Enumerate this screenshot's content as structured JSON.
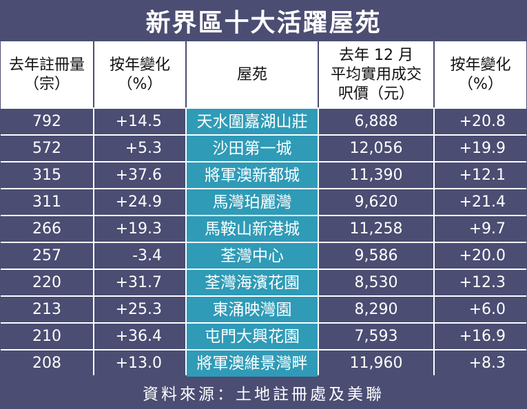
{
  "title": "新界區十大活躍屋苑",
  "headers": {
    "registrations": [
      "去年註冊量",
      "（宗）"
    ],
    "registrations_change": [
      "按年變化",
      "（%）"
    ],
    "estate": [
      "屋苑"
    ],
    "price": [
      "去年 12 月",
      "平均實用成交",
      "呎價（元）"
    ],
    "price_change": [
      "按年變化",
      "（%）"
    ]
  },
  "rows": [
    {
      "registrations": "792",
      "registrations_change": "+14.5",
      "estate": "天水圍嘉湖山莊",
      "price": "6,888",
      "price_change": "+20.8"
    },
    {
      "registrations": "572",
      "registrations_change": "+5.3",
      "estate": "沙田第一城",
      "price": "12,056",
      "price_change": "+19.9"
    },
    {
      "registrations": "315",
      "registrations_change": "+37.6",
      "estate": "將軍澳新都城",
      "price": "11,390",
      "price_change": "+12.1"
    },
    {
      "registrations": "311",
      "registrations_change": "+24.9",
      "estate": "馬灣珀麗灣",
      "price": "9,620",
      "price_change": "+21.4"
    },
    {
      "registrations": "266",
      "registrations_change": "+19.3",
      "estate": "馬鞍山新港城",
      "price": "11,258",
      "price_change": "+9.7"
    },
    {
      "registrations": "257",
      "registrations_change": "-3.4",
      "estate": "荃灣中心",
      "price": "9,586",
      "price_change": "+20.0"
    },
    {
      "registrations": "220",
      "registrations_change": "+31.7",
      "estate": "荃灣海濱花園",
      "price": "8,530",
      "price_change": "+12.3"
    },
    {
      "registrations": "213",
      "registrations_change": "+25.3",
      "estate": "東涌映灣園",
      "price": "8,290",
      "price_change": "+6.0"
    },
    {
      "registrations": "210",
      "registrations_change": "+36.4",
      "estate": "屯門大興花園",
      "price": "7,593",
      "price_change": "+16.9"
    },
    {
      "registrations": "208",
      "registrations_change": "+13.0",
      "estate": "將軍澳維景灣畔",
      "price": "11,960",
      "price_change": "+8.3"
    }
  ],
  "source": "資料來源：土地註冊處及美聯",
  "colors": {
    "row_background": "#4b4d72",
    "estate_highlight": "#2f9bb7",
    "header_background": "#ffffff"
  },
  "chart_data": {
    "type": "table",
    "title": "新界區十大活躍屋苑",
    "columns": [
      "去年註冊量（宗）",
      "按年變化（%）",
      "屋苑",
      "去年 12 月平均實用成交呎價（元）",
      "按年變化（%）"
    ],
    "rows": [
      [
        792,
        14.5,
        "天水圍嘉湖山莊",
        6888,
        20.8
      ],
      [
        572,
        5.3,
        "沙田第一城",
        12056,
        19.9
      ],
      [
        315,
        37.6,
        "將軍澳新都城",
        11390,
        12.1
      ],
      [
        311,
        24.9,
        "馬灣珀麗灣",
        9620,
        21.4
      ],
      [
        266,
        19.3,
        "馬鞍山新港城",
        11258,
        9.7
      ],
      [
        257,
        -3.4,
        "荃灣中心",
        9586,
        20.0
      ],
      [
        220,
        31.7,
        "荃灣海濱花園",
        8530,
        12.3
      ],
      [
        213,
        25.3,
        "東涌映灣園",
        8290,
        6.0
      ],
      [
        210,
        36.4,
        "屯門大興花園",
        7593,
        16.9
      ],
      [
        208,
        13.0,
        "將軍澳維景灣畔",
        11960,
        8.3
      ]
    ]
  }
}
